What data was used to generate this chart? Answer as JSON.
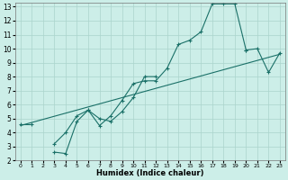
{
  "xlabel": "Humidex (Indice chaleur)",
  "background_color": "#cceee8",
  "grid_color": "#aad4cc",
  "line_color": "#1a7068",
  "xlim": [
    -0.5,
    23.5
  ],
  "ylim": [
    2,
    13.3
  ],
  "xticks": [
    0,
    1,
    2,
    3,
    4,
    5,
    6,
    7,
    8,
    9,
    10,
    11,
    12,
    13,
    14,
    15,
    16,
    17,
    18,
    19,
    20,
    21,
    22,
    23
  ],
  "yticks": [
    2,
    3,
    4,
    5,
    6,
    7,
    8,
    9,
    10,
    11,
    12,
    13
  ],
  "series": [
    {
      "x": [
        0,
        1
      ],
      "y": [
        4.6,
        4.6
      ],
      "markers": true
    },
    {
      "x": [
        3,
        4,
        5,
        6,
        7,
        8,
        9,
        10,
        11,
        12,
        13,
        14,
        15,
        16,
        17,
        18,
        19,
        20
      ],
      "y": [
        3.2,
        4.0,
        5.2,
        5.6,
        4.5,
        5.2,
        6.3,
        7.5,
        7.7,
        7.7,
        8.6,
        10.3,
        10.6,
        11.2,
        13.2,
        13.2,
        13.2,
        9.9
      ],
      "markers": true
    },
    {
      "x": [
        3,
        4,
        5,
        6,
        7,
        8,
        9,
        10,
        11,
        12
      ],
      "y": [
        2.6,
        2.5,
        4.8,
        5.6,
        5.0,
        4.8,
        5.5,
        6.5,
        8.0,
        8.0
      ],
      "markers": true
    },
    {
      "x": [
        20,
        21,
        22,
        23
      ],
      "y": [
        9.9,
        10.0,
        8.3,
        9.7
      ],
      "markers": true
    },
    {
      "x": [
        0,
        23
      ],
      "y": [
        4.5,
        9.6
      ],
      "markers": false
    }
  ]
}
